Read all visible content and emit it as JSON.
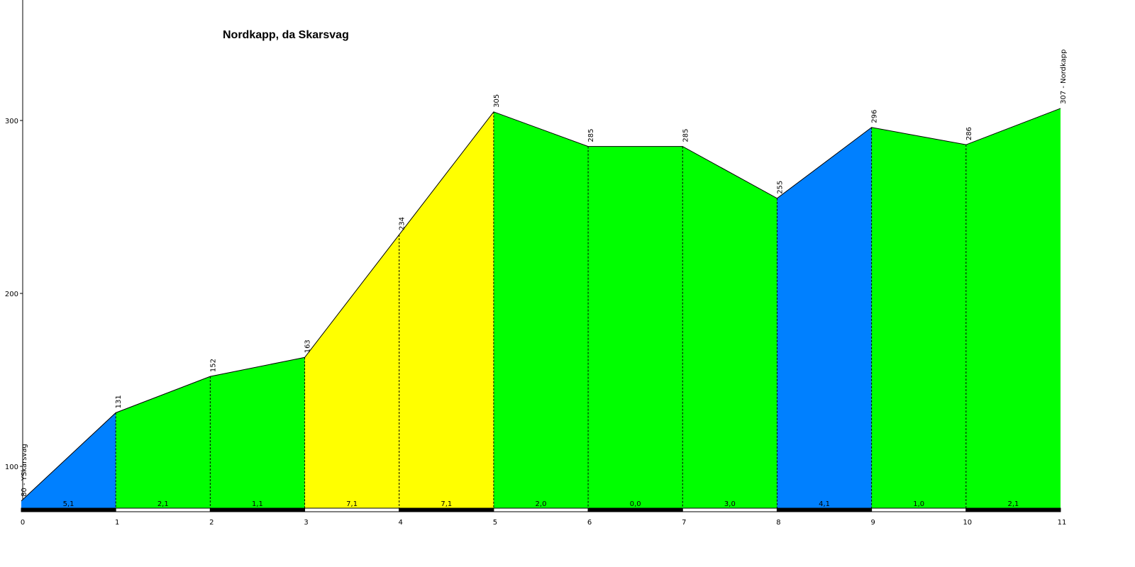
{
  "chart_data": {
    "type": "area",
    "title": "Nordkapp, da Skarsvag",
    "xlabel": "",
    "ylabel": "",
    "x": [
      0,
      1,
      2,
      3,
      4,
      5,
      6,
      7,
      8,
      9,
      10,
      11
    ],
    "elevations": [
      80,
      131,
      152,
      163,
      234,
      305,
      285,
      285,
      255,
      296,
      286,
      307
    ],
    "point_labels": [
      "80 - YSkarsvag",
      "131",
      "152",
      "163",
      "234",
      "305",
      "285",
      "285",
      "255",
      "296",
      "286",
      "307 - Nordkapp"
    ],
    "segment_gradients": [
      "5,1",
      "2,1",
      "1,1",
      "7,1",
      "7,1",
      "2,0",
      "0,0",
      "3,0",
      "4,1",
      "1,0",
      "2,1"
    ],
    "segment_colors": [
      "#0080ff",
      "#00ff00",
      "#00ff00",
      "#ffff00",
      "#ffff00",
      "#00ff00",
      "#00ff00",
      "#00ff00",
      "#0080ff",
      "#00ff00",
      "#00ff00"
    ],
    "x_ticks": [
      "0",
      "1",
      "2",
      "3",
      "4",
      "5",
      "6",
      "7",
      "8",
      "9",
      "10",
      "11"
    ],
    "y_ticks": [
      "100",
      "200",
      "300"
    ],
    "y_tick_values": [
      100,
      200,
      300
    ],
    "xlim": [
      0,
      11
    ],
    "ylim": [
      76,
      370
    ],
    "grid": false,
    "legend": "none"
  }
}
